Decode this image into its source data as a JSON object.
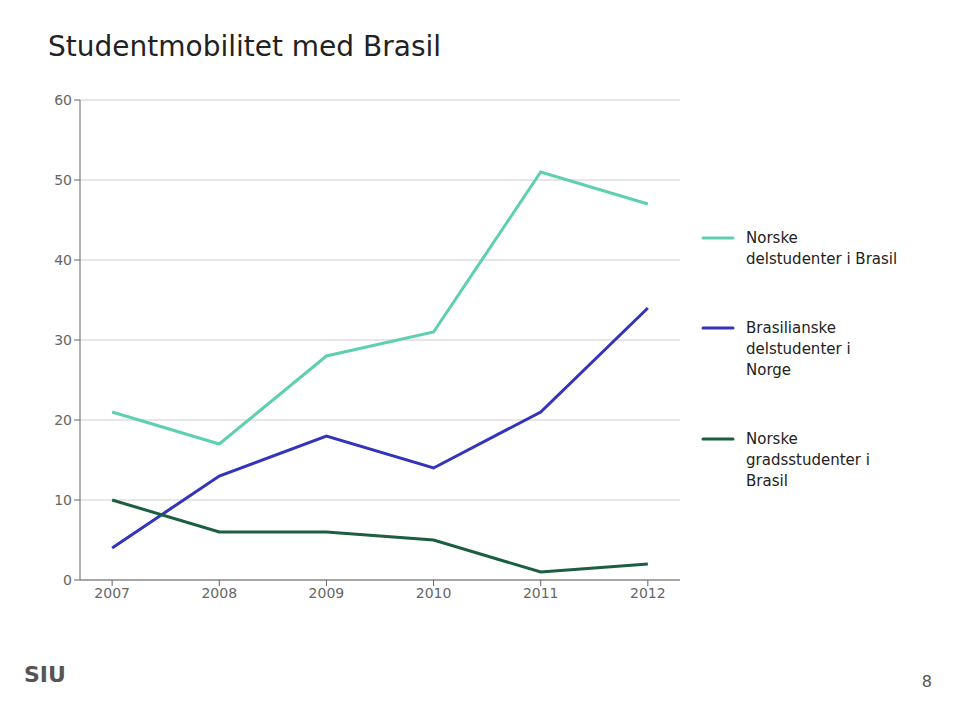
{
  "chart_data": {
    "type": "line",
    "title": "Studentmobilitet med Brasil",
    "x": [
      2007,
      2008,
      2009,
      2010,
      2011,
      2012
    ],
    "series": [
      {
        "name": "Norske\ndelstudenter i Brasil",
        "color": "#5ECFB0",
        "values": [
          21,
          17,
          28,
          31,
          51,
          47
        ]
      },
      {
        "name": "Brasilianske\ndelstudenter i\nNorge",
        "color": "#3333BB",
        "values": [
          4,
          13,
          18,
          14,
          21,
          34
        ]
      },
      {
        "name": "Norske\ngradsstudenter i\nBrasil",
        "color": "#1B5E40",
        "values": [
          10,
          6,
          6,
          5,
          1,
          2
        ]
      }
    ],
    "xlim": [
      2006.7,
      2012.3
    ],
    "xticks": [
      2007,
      2008,
      2009,
      2010,
      2011,
      2012
    ],
    "ylim": [
      0,
      60
    ],
    "yticks": [
      0,
      10,
      20,
      30,
      40,
      50,
      60
    ],
    "grid": true,
    "legend": "right",
    "annotations": [
      "SIU",
      "8"
    ]
  }
}
